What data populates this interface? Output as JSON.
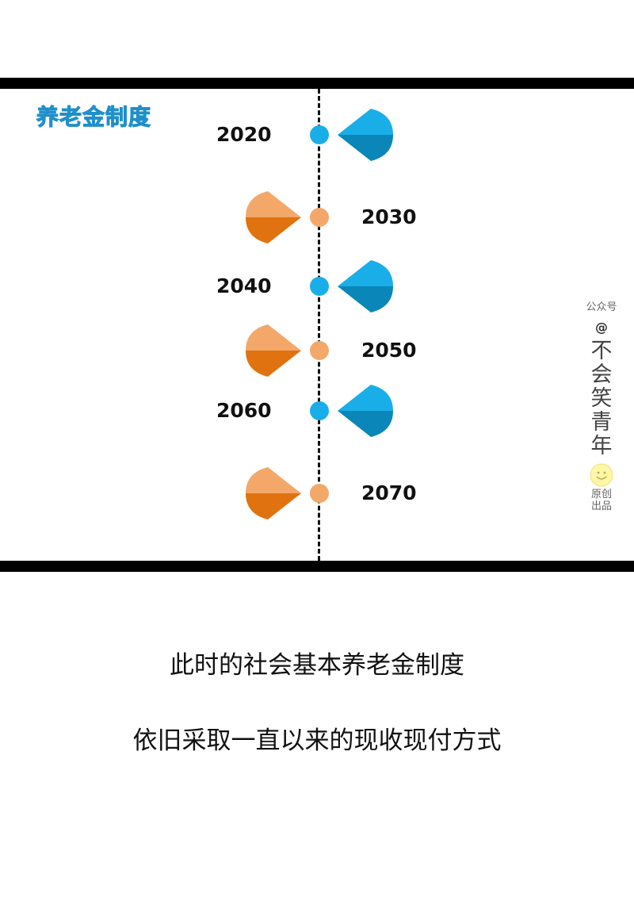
{
  "panel": {
    "title": "养老金制度",
    "timeline": [
      {
        "year": "2020",
        "side": "right",
        "color": "blue"
      },
      {
        "year": "2030",
        "side": "left",
        "color": "orange"
      },
      {
        "year": "2040",
        "side": "right",
        "color": "blue"
      },
      {
        "year": "2050",
        "side": "left",
        "color": "orange"
      },
      {
        "year": "2060",
        "side": "right",
        "color": "blue"
      },
      {
        "year": "2070",
        "side": "left",
        "color": "orange"
      }
    ],
    "colors": {
      "blue_light": "#1aaee8",
      "blue_dark": "#0b86b8",
      "orange_light": "#f3a86a",
      "orange_dark": "#e0720f"
    }
  },
  "watermark": {
    "line1": "公众号",
    "at": "@",
    "name_chars": [
      "不",
      "会",
      "笑",
      "青",
      "年"
    ],
    "original_l1": "原创",
    "original_l2": "出品"
  },
  "captions": {
    "line1": "此时的社会基本养老金制度",
    "line2": "依旧采取一直以来的现收现付方式"
  }
}
